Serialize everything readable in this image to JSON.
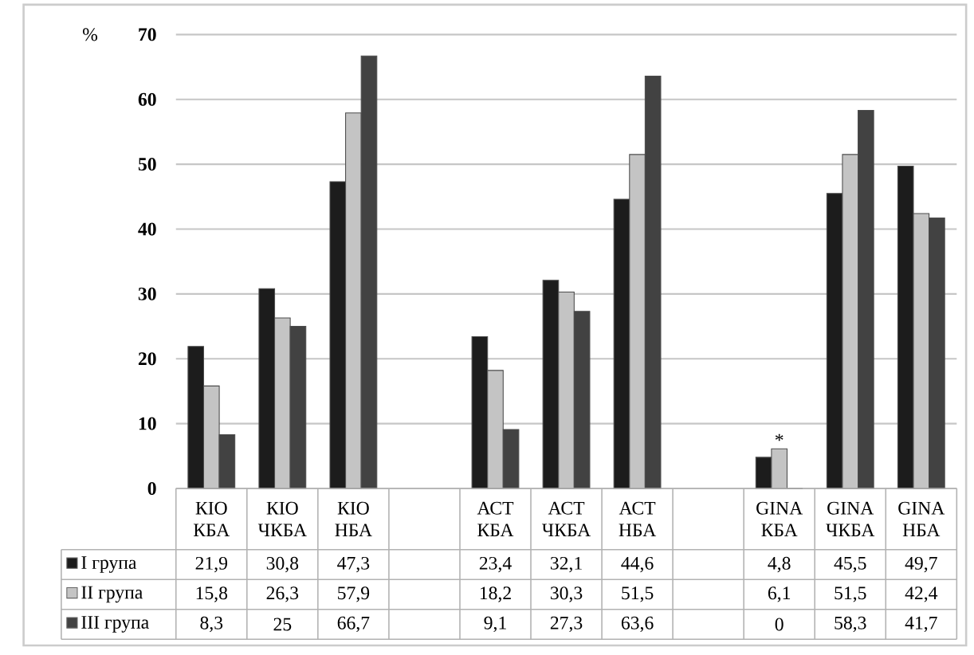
{
  "chart_data": {
    "type": "bar",
    "ylabel": "%",
    "categories": [
      "КІО КБА",
      "КІО ЧКБА",
      "КІО НБА",
      null,
      "АСТ КБА",
      "АСТ ЧКБА",
      "АСТ НБА",
      null,
      "GINA КБА",
      "GINA ЧКБА",
      "GINA НБА"
    ],
    "series": [
      {
        "name": "І група",
        "color": "#1c1c1c",
        "values": [
          21.9,
          30.8,
          47.3,
          null,
          23.4,
          32.1,
          44.6,
          null,
          4.8,
          45.5,
          49.7
        ],
        "value_labels": [
          "21,9",
          "30,8",
          "47,3",
          null,
          "23,4",
          "32,1",
          "44,6",
          null,
          "4,8",
          "45,5",
          "49,7"
        ]
      },
      {
        "name": "ІІ група",
        "color": "#c4c4c4",
        "values": [
          15.8,
          26.3,
          57.9,
          null,
          18.2,
          30.3,
          51.5,
          null,
          6.1,
          51.5,
          42.4
        ],
        "value_labels": [
          "15,8",
          "26,3",
          "57,9",
          null,
          "18,2",
          "30,3",
          "51,5",
          null,
          "6,1",
          "51,5",
          "42,4"
        ]
      },
      {
        "name": "ІІІ група",
        "color": "#424242",
        "values": [
          8.3,
          25,
          66.7,
          null,
          9.1,
          27.3,
          63.6,
          null,
          0,
          58.3,
          41.7
        ],
        "value_labels": [
          "8,3",
          "25",
          "66,7",
          null,
          "9,1",
          "27,3",
          "63,6",
          null,
          "0",
          "58,3",
          "41,7"
        ]
      }
    ],
    "ylim": [
      0,
      70
    ],
    "yticks": [
      0,
      10,
      20,
      30,
      40,
      50,
      60,
      70
    ],
    "grid": "y",
    "legend": "bottom",
    "annotations": [
      {
        "text": "*",
        "x": "GINA КБА",
        "y": 6.1
      }
    ]
  }
}
